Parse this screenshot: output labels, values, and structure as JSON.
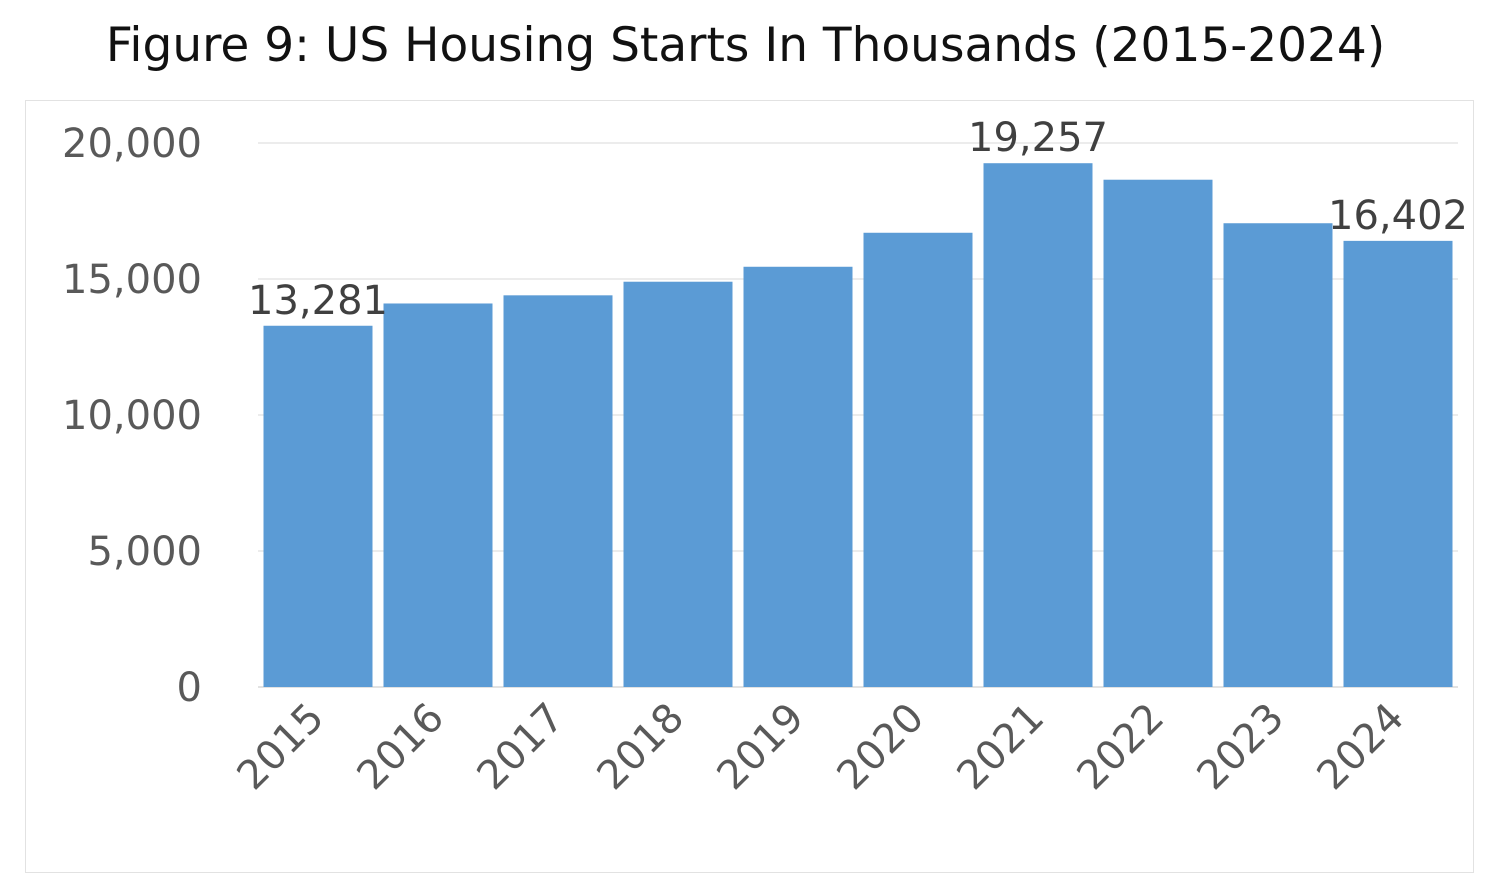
{
  "chart_data": {
    "type": "bar",
    "title": "Figure 9: US Housing Starts In Thousands (2015-2024)",
    "xlabel": "",
    "ylabel": "",
    "categories": [
      "2015",
      "2016",
      "2017",
      "2018",
      "2019",
      "2020",
      "2021",
      "2022",
      "2023",
      "2024"
    ],
    "values": [
      13281,
      14100,
      14400,
      14900,
      15450,
      16700,
      19257,
      18650,
      17050,
      16402
    ],
    "data_labels": [
      "13,281",
      "",
      "",
      "",
      "",
      "",
      "19,257",
      "",
      "",
      "16,402"
    ],
    "ylim": [
      0,
      20000
    ],
    "yticks": [
      0,
      5000,
      10000,
      15000,
      20000
    ],
    "ytick_labels": [
      "0",
      "5,000",
      "10,000",
      "15,000",
      "20,000"
    ],
    "grid": true,
    "legend": "none",
    "bar_color": "#5b9bd5",
    "gridline_color": "#d9d9d9",
    "text_color": "#595959"
  }
}
